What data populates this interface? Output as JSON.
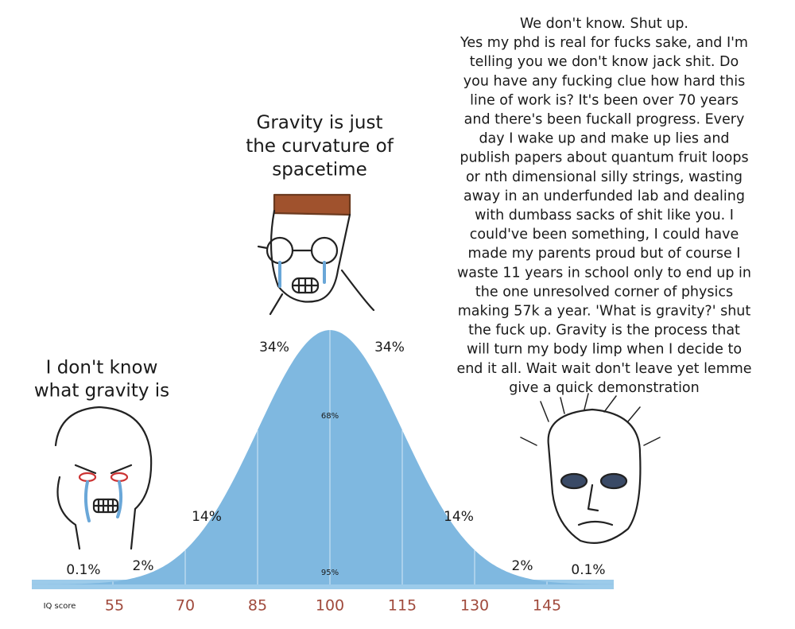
{
  "left_caption": [
    "I don't know",
    "what gravity is"
  ],
  "middle_caption": [
    "Gravity is just",
    "the curvature of",
    "spacetime"
  ],
  "right_text": [
    "We don't know. Shut up.",
    "Yes my phd is real for fucks sake, and I'm",
    "telling you we don't know jack shit. Do",
    "you have any fucking clue how hard this",
    "line of work is? It's been over 70 years",
    "and there's been fuckall progress. Every",
    "day I wake up and make up lies and",
    "publish papers about quantum fruit loops",
    "or nth dimensional silly strings, wasting",
    "away in an underfunded lab and dealing",
    "with dumbass sacks of shit like you. I",
    "could've been something, I could have",
    "made my parents proud but of course I",
    "waste 11 years in school only to end up in",
    "the one unresolved corner of physics",
    "making 57k a year. 'What is gravity?' shut",
    "the fuck up. Gravity is the process that",
    "will turn my body limp when I decide to",
    "end it all. Wait wait don't leave yet lemme",
    "give a quick demonstration"
  ],
  "curve": {
    "percent_labels": [
      "0.1%",
      "2%",
      "14%",
      "34%",
      "34%",
      "14%",
      "2%",
      "0.1%"
    ],
    "inner_labels": [
      "68%",
      "95%"
    ],
    "axis_label": "IQ score",
    "ticks": [
      55,
      70,
      85,
      100,
      115,
      130,
      145
    ]
  }
}
